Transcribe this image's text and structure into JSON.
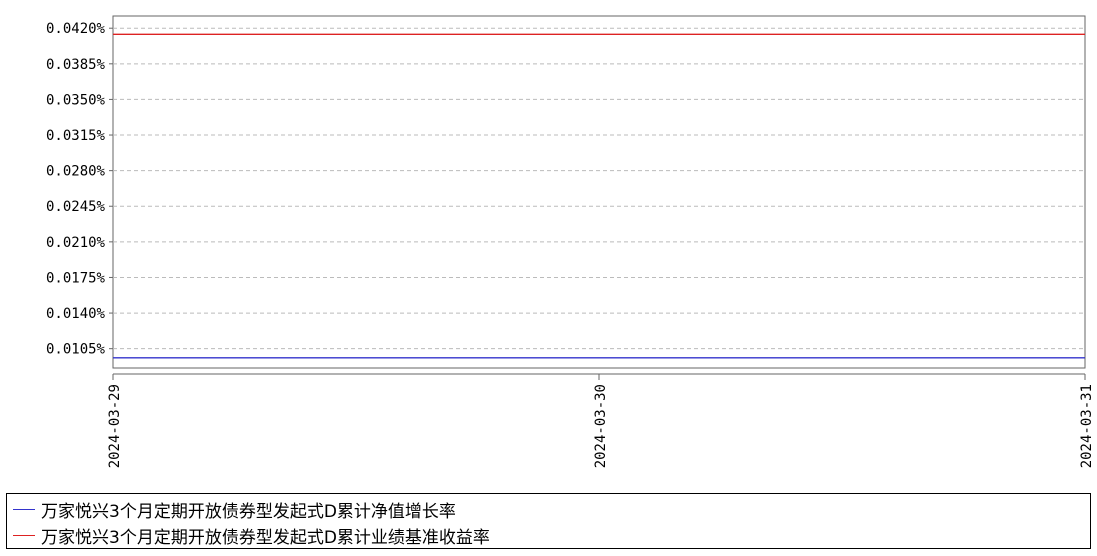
{
  "chart_data": {
    "type": "line",
    "title": "",
    "xlabel": "",
    "ylabel": "",
    "x_ticks": [
      "2024-03-29",
      "2024-03-30",
      "2024-03-31"
    ],
    "y_ticks": [
      "0.0105%",
      "0.0140%",
      "0.0175%",
      "0.0210%",
      "0.0245%",
      "0.0280%",
      "0.0315%",
      "0.0350%",
      "0.0385%",
      "0.0420%"
    ],
    "ylim": [
      0.0086,
      0.0432
    ],
    "grid": true,
    "legend_position": "bottom",
    "series": [
      {
        "name": "万家悦兴3个月定期开放债券型发起式D累计净值增长率",
        "color": "#3333cc",
        "x": [
          "2024-03-29",
          "2024-03-30",
          "2024-03-31"
        ],
        "values": [
          0.0096,
          0.0096,
          0.0096
        ]
      },
      {
        "name": "万家悦兴3个月定期开放债券型发起式D累计业绩基准收益率",
        "color": "#dd2222",
        "x": [
          "2024-03-29",
          "2024-03-30",
          "2024-03-31"
        ],
        "values": [
          0.0414,
          0.0414,
          0.0414
        ]
      }
    ]
  }
}
